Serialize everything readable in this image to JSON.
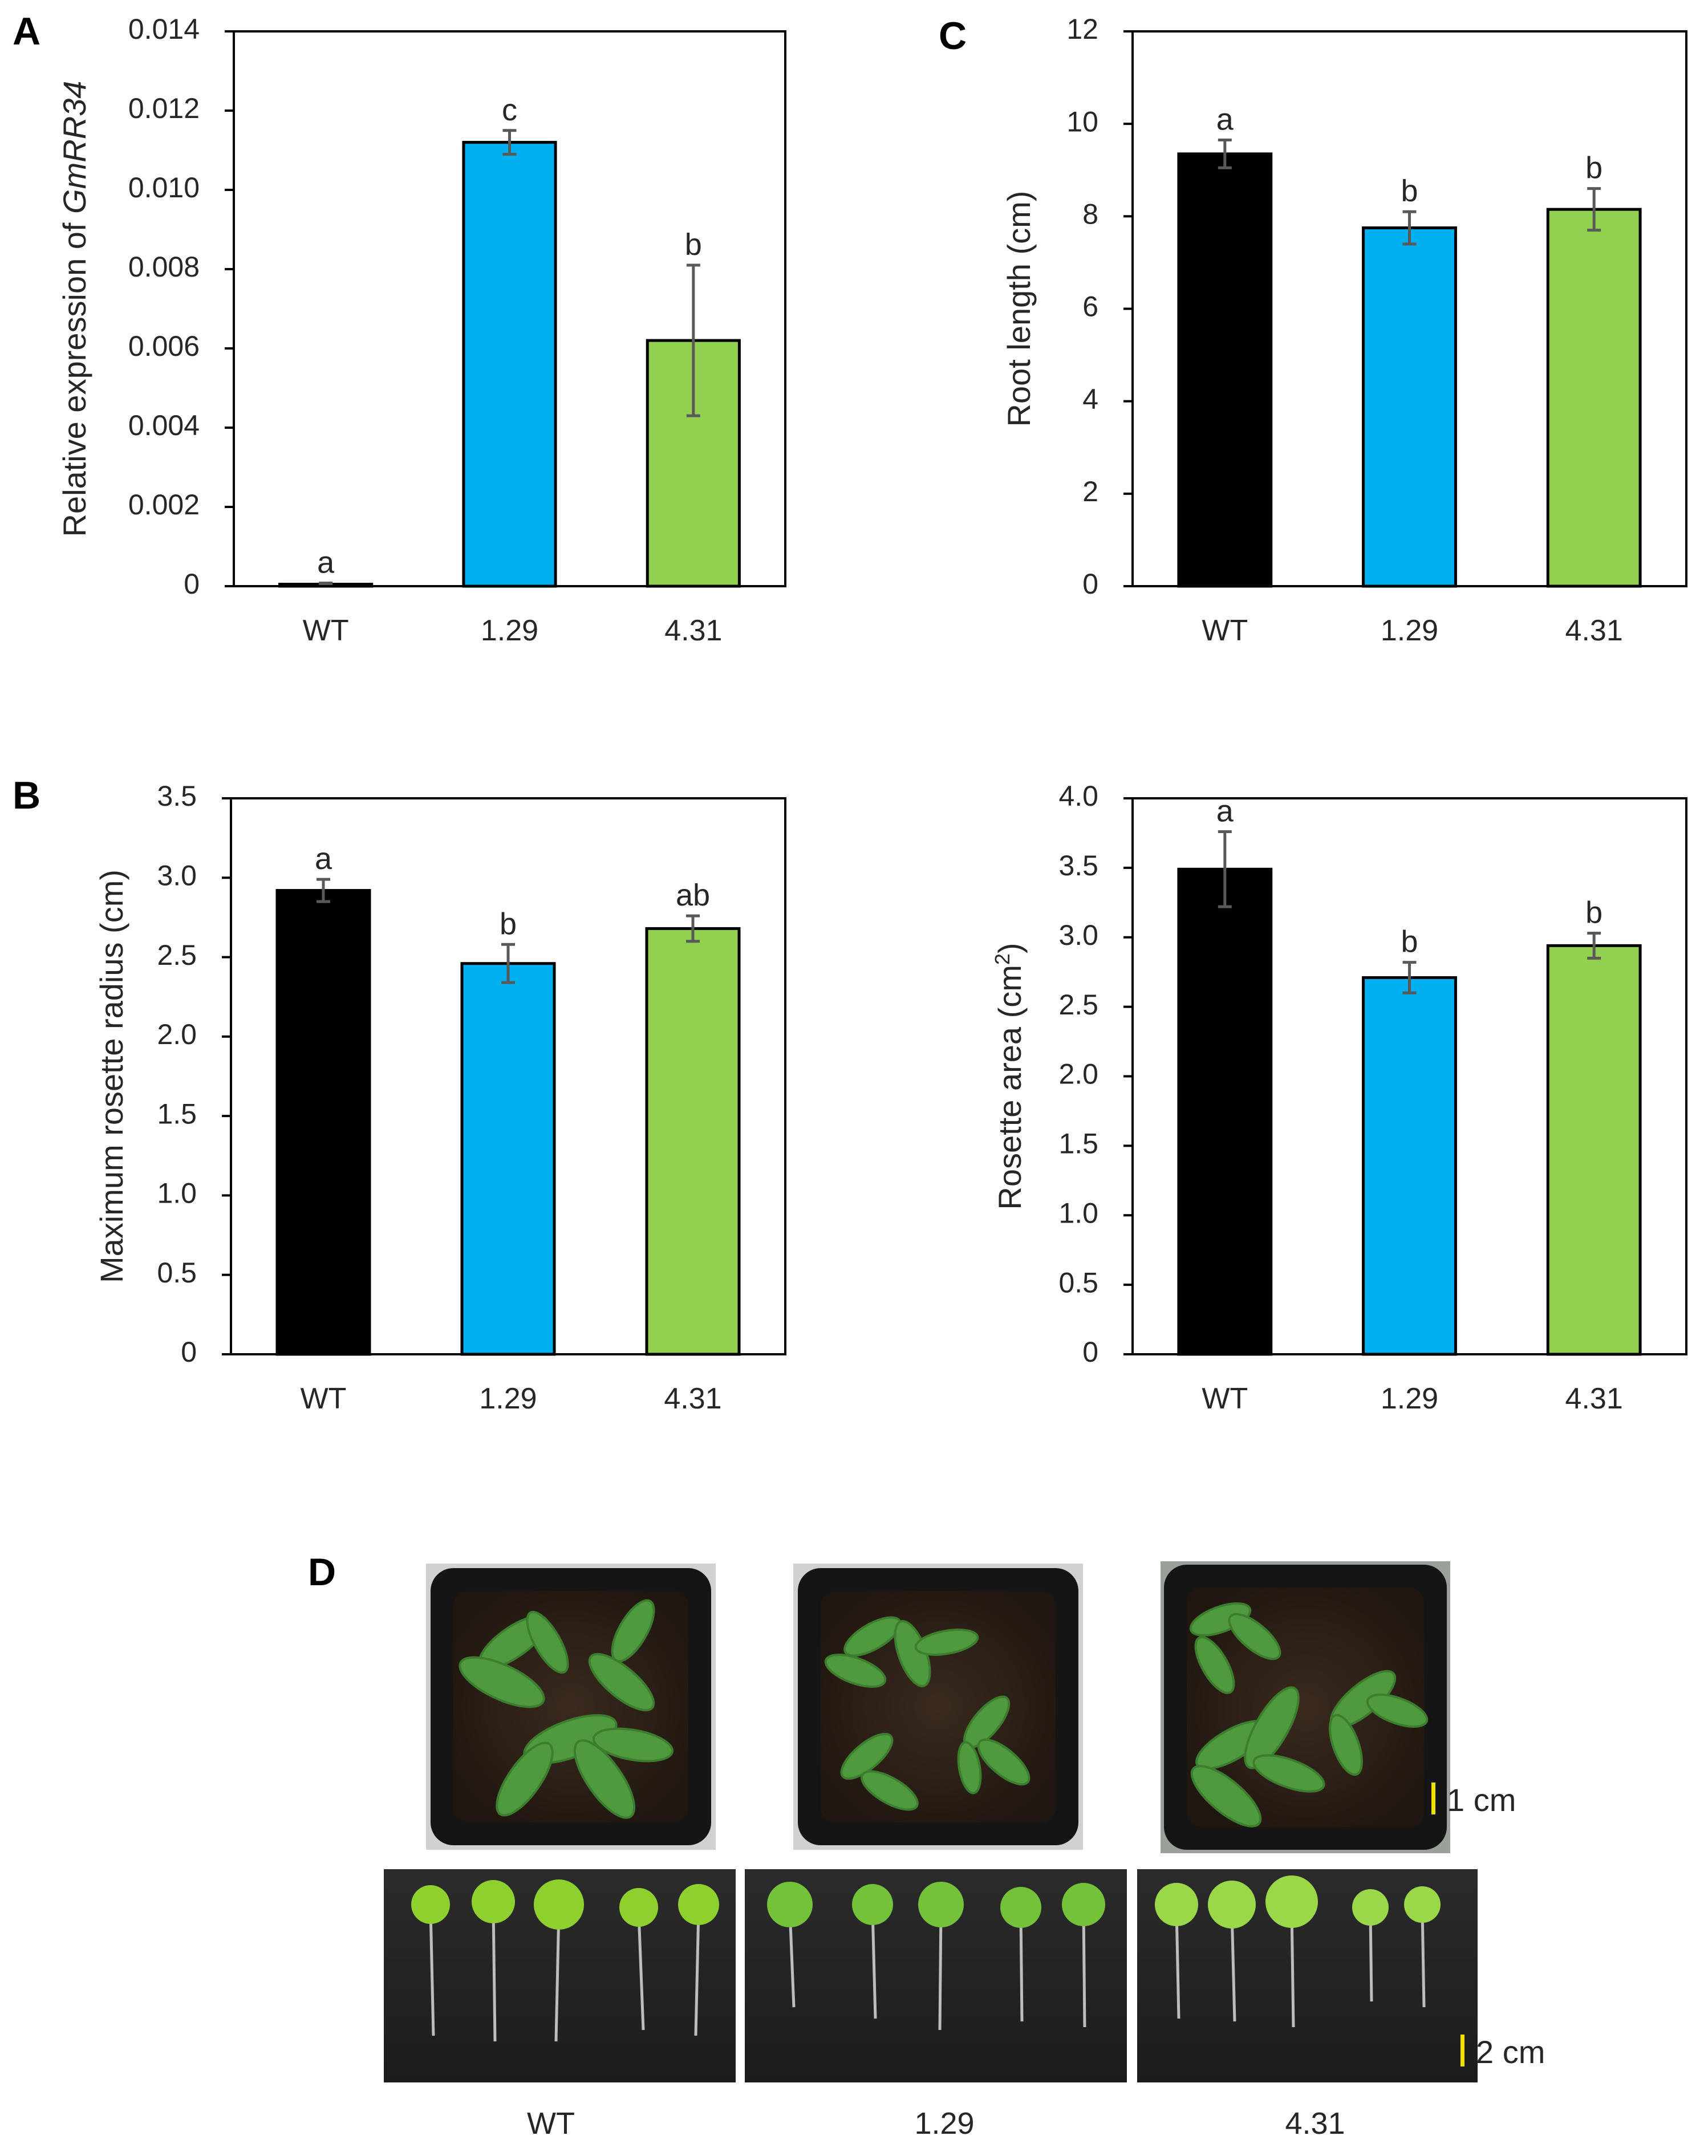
{
  "chart_data": [
    {
      "panel": "A",
      "type": "bar",
      "categories": [
        "WT",
        "1.29",
        "4.31"
      ],
      "values": [
        5e-05,
        0.0112,
        0.0062
      ],
      "errors": [
        3e-05,
        0.0003,
        0.0019
      ],
      "significance": [
        "a",
        "c",
        "b"
      ],
      "colors": [
        "#000000",
        "#00B0F0",
        "#92D050"
      ],
      "ylabel_prefix": "Relative expression of ",
      "ylabel_gene": "GmRR34",
      "ylim": [
        0,
        0.014
      ],
      "yticks": [
        0,
        0.002,
        0.004,
        0.006,
        0.008,
        0.01,
        0.012,
        0.014
      ],
      "yticklabels": [
        "0",
        "0.002",
        "0.004",
        "0.006",
        "0.008",
        "0.010",
        "0.012",
        "0.014"
      ],
      "grid": false
    },
    {
      "panel": "C",
      "type": "bar",
      "categories": [
        "WT",
        "1.29",
        "4.31"
      ],
      "values": [
        9.35,
        7.75,
        8.15
      ],
      "errors": [
        0.3,
        0.35,
        0.45
      ],
      "significance": [
        "a",
        "b",
        "b"
      ],
      "colors": [
        "#000000",
        "#00B0F0",
        "#92D050"
      ],
      "ylabel": "Root length (cm)",
      "ylim": [
        0,
        12
      ],
      "yticks": [
        0,
        2,
        4,
        6,
        8,
        10,
        12
      ],
      "yticklabels": [
        "0",
        "2",
        "4",
        "6",
        "8",
        "10",
        "12"
      ],
      "grid": false
    },
    {
      "panel": "B",
      "type": "bar",
      "categories": [
        "WT",
        "1.29",
        "4.31"
      ],
      "values": [
        2.92,
        2.46,
        2.68
      ],
      "errors": [
        0.07,
        0.12,
        0.08
      ],
      "significance": [
        "a",
        "b",
        "ab"
      ],
      "colors": [
        "#000000",
        "#00B0F0",
        "#92D050"
      ],
      "ylabel": "Maximum rosette radius (cm)",
      "ylim": [
        0,
        3.5
      ],
      "yticks": [
        0,
        0.5,
        1,
        1.5,
        2,
        2.5,
        3,
        3.5
      ],
      "yticklabels": [
        "0",
        "0.5",
        "1.0",
        "1.5",
        "2.0",
        "2.5",
        "3.0",
        "3.5"
      ],
      "grid": false
    },
    {
      "panel": "",
      "type": "bar",
      "categories": [
        "WT",
        "1.29",
        "4.31"
      ],
      "values": [
        3.49,
        2.71,
        2.94
      ],
      "errors": [
        0.27,
        0.11,
        0.09
      ],
      "significance": [
        "a",
        "b",
        "b"
      ],
      "colors": [
        "#000000",
        "#00B0F0",
        "#92D050"
      ],
      "ylabel_prefix": "Rosette area (cm",
      "ylabel_sup": "2",
      "ylabel_suffix": ")",
      "ylim": [
        0,
        4.0
      ],
      "yticks": [
        0,
        0.5,
        1,
        1.5,
        2,
        2.5,
        3,
        3.5,
        4
      ],
      "yticklabels": [
        "0",
        "0.5",
        "1.0",
        "1.5",
        "2.0",
        "2.5",
        "3.0",
        "3.5",
        "4.0"
      ],
      "grid": false
    }
  ],
  "panel_d": {
    "letter": "D",
    "pot_photos": [
      {
        "name": "WT",
        "image": "top-view pot of rosette plants"
      },
      {
        "name": "1.29",
        "image": "top-view pot of rosette plants"
      },
      {
        "name": "4.31",
        "image": "top-view pot of rosette plants"
      }
    ],
    "seedling_photos": [
      {
        "name": "WT",
        "image": "five seedlings with roots on dark background"
      },
      {
        "name": "1.29",
        "image": "five seedlings with roots on dark background"
      },
      {
        "name": "4.31",
        "image": "five seedlings with roots on dark background"
      }
    ],
    "labels": [
      "WT",
      "1.29",
      "4.31"
    ],
    "scale_top": "1 cm",
    "scale_bottom": "2 cm",
    "scale_color": "#F0E000"
  }
}
